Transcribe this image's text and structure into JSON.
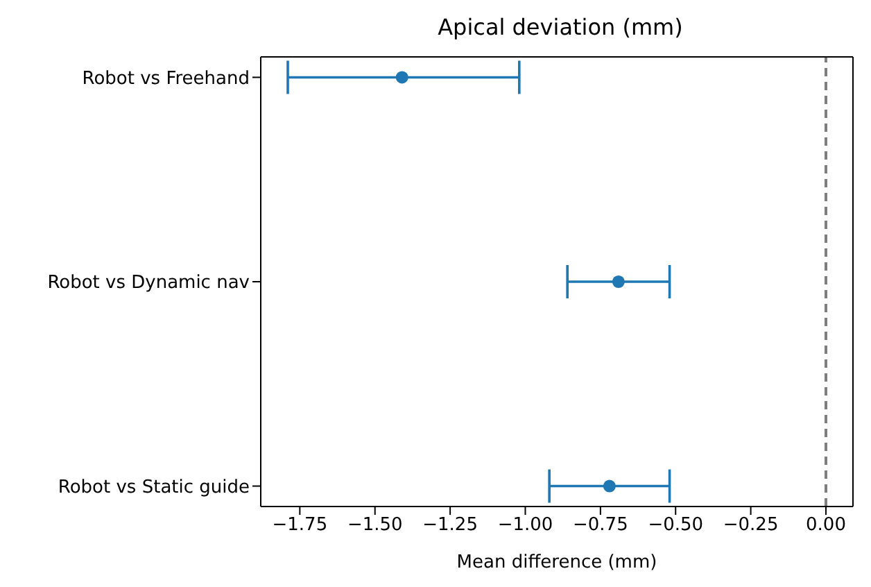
{
  "chart_data": {
    "type": "scatter",
    "orientation": "horizontal",
    "title": "Apical deviation (mm)",
    "xlabel": "Mean difference (mm)",
    "categories": [
      "Robot vs Freehand",
      "Robot vs Dynamic nav",
      "Robot vs Static guide"
    ],
    "values": [
      -1.41,
      -0.69,
      -0.72
    ],
    "errors": [
      [
        -1.79,
        -1.02
      ],
      [
        -0.86,
        -0.52
      ],
      [
        -0.92,
        -0.52
      ]
    ],
    "color": "#1f77b4",
    "marker": "circle",
    "grid": false,
    "legend": false,
    "xlim": [
      -1.88,
      0.09
    ],
    "xticks": [
      {
        "value": -1.75,
        "label": "−1.75"
      },
      {
        "value": -1.5,
        "label": "−1.50"
      },
      {
        "value": -1.25,
        "label": "−1.25"
      },
      {
        "value": -1.0,
        "label": "−1.00"
      },
      {
        "value": -0.75,
        "label": "−0.75"
      },
      {
        "value": -0.5,
        "label": "−0.50"
      },
      {
        "value": -0.25,
        "label": "−0.25"
      },
      {
        "value": 0,
        "label": "0.00"
      }
    ],
    "ref_lines": [
      {
        "axis": "x",
        "value": 0,
        "color": "#7f7f7f",
        "line_style": "dashed"
      }
    ]
  }
}
